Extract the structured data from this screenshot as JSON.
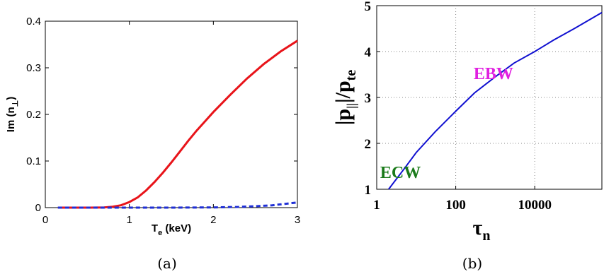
{
  "chart_data": [
    {
      "type": "line",
      "title": "",
      "xlabel": "T",
      "xlabel_sub": "e",
      "xlabel_suffix": " (keV)",
      "ylabel": "Im (n",
      "ylabel_sub": "⊥",
      "ylabel_suffix": ")",
      "xlim": [
        0,
        3
      ],
      "ylim": [
        0,
        0.4
      ],
      "xticks": [
        "0",
        "1",
        "2",
        "3"
      ],
      "yticks": [
        "0",
        "0.1",
        "0.2",
        "0.3",
        "0.4"
      ],
      "grid": false,
      "series": [
        {
          "color": "#e8141a",
          "style": "solid",
          "x": [
            0.15,
            0.5,
            0.7,
            0.8,
            0.9,
            1.0,
            1.1,
            1.2,
            1.3,
            1.4,
            1.5,
            1.6,
            1.7,
            1.8,
            1.9,
            2.0,
            2.2,
            2.4,
            2.6,
            2.8,
            3.0
          ],
          "y": [
            0.0,
            0.0,
            0.0005,
            0.002,
            0.005,
            0.012,
            0.022,
            0.037,
            0.055,
            0.075,
            0.097,
            0.12,
            0.143,
            0.165,
            0.185,
            0.205,
            0.242,
            0.277,
            0.308,
            0.335,
            0.358
          ]
        },
        {
          "color": "#1f2fd6",
          "style": "dashed",
          "x": [
            0.15,
            1.0,
            1.5,
            2.0,
            2.3,
            2.5,
            2.7,
            2.85,
            3.0
          ],
          "y": [
            0.0,
            0.0,
            0.0,
            0.0005,
            0.0015,
            0.003,
            0.005,
            0.008,
            0.011
          ]
        }
      ],
      "caption": "(a)"
    },
    {
      "type": "line",
      "title": "",
      "xlabel": "τ",
      "xlabel_sub": "n",
      "ylabel": "|p",
      "ylabel_sub": "||",
      "ylabel_mid": "|/p",
      "ylabel_sub2": "te",
      "xscale": "log",
      "xlim": [
        1,
        500000
      ],
      "ylim": [
        1,
        5
      ],
      "xticks": [
        "1",
        "100",
        "10000"
      ],
      "xtick_values": [
        1,
        100,
        10000
      ],
      "yticks": [
        "1",
        "2",
        "3",
        "4",
        "5"
      ],
      "grid": true,
      "series": [
        {
          "color": "#1010d0",
          "style": "solid",
          "x": [
            2,
            5,
            10,
            30,
            100,
            300,
            1000,
            3000,
            10000,
            30000,
            100000,
            500000
          ],
          "y": [
            1.0,
            1.45,
            1.8,
            2.25,
            2.7,
            3.1,
            3.45,
            3.75,
            4.0,
            4.25,
            4.5,
            4.85
          ]
        }
      ],
      "annotations": [
        {
          "text": "EBW",
          "color": "#e020e0",
          "x": 900,
          "y": 3.4
        },
        {
          "text": "ECW",
          "color": "#1a7a1a",
          "x": 4,
          "y": 1.25
        }
      ],
      "caption": "(b)"
    }
  ]
}
